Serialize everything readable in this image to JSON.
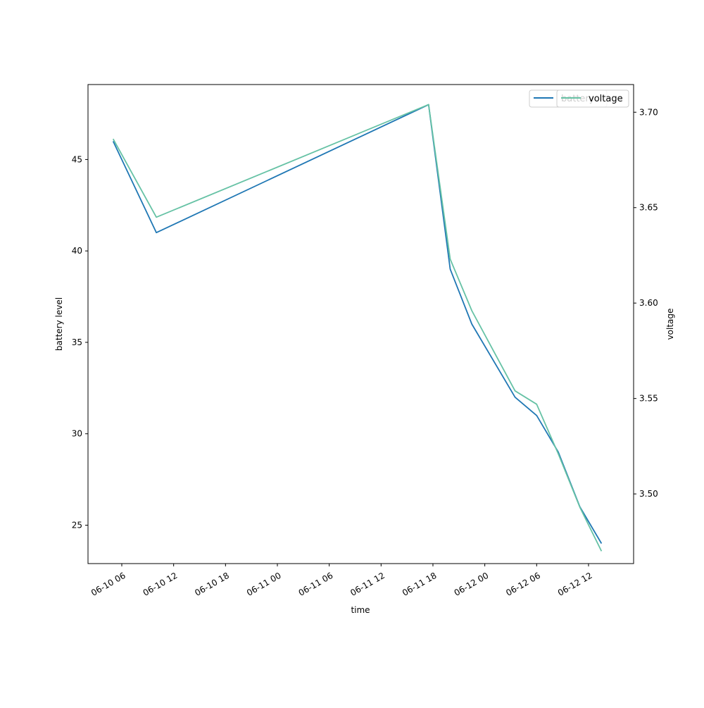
{
  "chart_data": {
    "type": "line",
    "xlabel": "time",
    "ylabel": "battery level",
    "ylabel_right": "voltage",
    "x": [
      "2024-06-10 05:00",
      "2024-06-10 10:00",
      "2024-06-11 17:30",
      "2024-06-11 20:00",
      "2024-06-11 22:30",
      "2024-06-12 03:30",
      "2024-06-12 06:00",
      "2024-06-12 08:30",
      "2024-06-12 11:00",
      "2024-06-12 13:30"
    ],
    "x_tick_labels": [
      "06-10 06",
      "06-10 12",
      "06-10 18",
      "06-11 00",
      "06-11 06",
      "06-11 12",
      "06-11 18",
      "06-12 00",
      "06-12 06",
      "06-12 12"
    ],
    "series": [
      {
        "name": "battery",
        "axis": "left",
        "color": "#1f77b4",
        "values": [
          46,
          41,
          48,
          39,
          36,
          32,
          31,
          29,
          26,
          24
        ]
      },
      {
        "name": "voltage",
        "axis": "right",
        "color": "#66c2a5",
        "values": [
          3.686,
          3.645,
          3.704,
          3.623,
          3.596,
          3.554,
          3.547,
          3.521,
          3.493,
          3.47
        ]
      }
    ],
    "ylim_left": [
      22.9,
      49.1
    ],
    "yticks_left": [
      25,
      30,
      35,
      40,
      45
    ],
    "ylim_right": [
      3.4635,
      3.7145
    ],
    "yticks_right": [
      3.5,
      3.55,
      3.6,
      3.65,
      3.7
    ],
    "grid": false,
    "legend_left": {
      "placement": "upper right",
      "entries": [
        "battery"
      ]
    },
    "legend_right": {
      "placement": "upper right",
      "entries": [
        "voltage"
      ]
    }
  }
}
